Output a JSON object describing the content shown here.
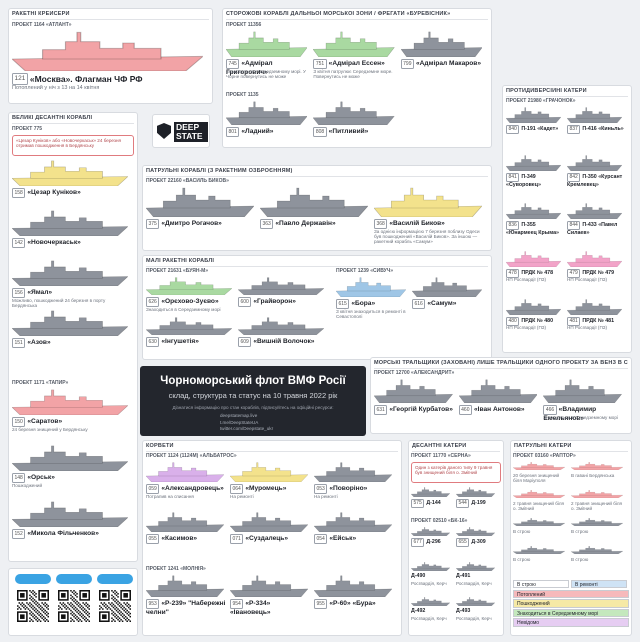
{
  "logo": "DEEP STATE",
  "title": "Чорноморський флот ВМФ Росії",
  "subtitle": "склад, структура та статус на 10 травня 2022 рік",
  "info": "Дізнатися інформацію про стан кораблів, підписуйтесь на офіційні ресурси:",
  "links": [
    "deepstatemap.live",
    "t.me/DeepStateUA",
    "twitter.com/Deepstate_ukr"
  ],
  "sections": [
    {
      "title": "РАКЕТНІ КРЕЙСЕРИ",
      "projects": [
        {
          "name": "ПРОЕКТ 1164 «АТЛАНТ»",
          "ships": [
            {
              "number": "121",
              "name": "«Москва». Флагман ЧФ РФ",
              "note": "Потоплений у ніч з 13 на 14 квітня",
              "color": "#f2a3a6"
            }
          ]
        }
      ]
    },
    {
      "title": "СТОРОЖОВІ КОРАБЛІ ДАЛЬНЬОЇ МОРСЬКОЇ ЗОНИ / ФРЕГАТИ «БУРЕВІСНИК»",
      "projects": [
        {
          "name": "ПРОЕКТ 11356",
          "ships": [
            {
              "number": "745",
              "name": "«Адмірал Григорович»",
              "note": "Знаходиться у Середземному морі. У Чорне повернутись не може",
              "color": "#a9d9a1"
            },
            {
              "number": "751",
              "name": "«Адмірал Ессен»",
              "note": "З квітня патрулює Середземне море. Повернутись не може",
              "color": "#a9d9a1"
            },
            {
              "number": "799",
              "name": "«Адмірал Макаров»",
              "color": "#8e939c"
            }
          ]
        },
        {
          "name": "ПРОЕКТ 1135",
          "ships": [
            {
              "number": "801",
              "name": "«Ладний»",
              "color": "#8e939c"
            },
            {
              "number": "808",
              "name": "«Питливий»",
              "color": "#8e939c"
            }
          ]
        }
      ]
    },
    {
      "title": "ВЕЛИКІ ДЕСАНТНІ КОРАБЛІ",
      "projects": [
        {
          "name": "ПРОЕКТ 775",
          "note": "«Цезар Куніков» або «Новочеркаськ» 24 березня отримав пошкодження в Бердянську",
          "ships": [
            {
              "number": "158",
              "name": "«Цезар Куніков»",
              "color": "#f3e28c"
            },
            {
              "number": "142",
              "name": "«Новочеркаськ»",
              "color": "#8e939c"
            },
            {
              "number": "156",
              "name": "«Ямал»",
              "note": "Можливо, пошкоджений 24 березня в порту Бердянська",
              "color": "#8e939c"
            },
            {
              "number": "151",
              "name": "«Азов»",
              "color": "#8e939c"
            }
          ]
        },
        {
          "name": "ПРОЕКТ 1171 «ТАПИР»",
          "ships": [
            {
              "number": "150",
              "name": "«Саратов»",
              "note": "24 березня знищений у Бердянську",
              "color": "#f2a3a6"
            },
            {
              "number": "148",
              "name": "«Орськ»",
              "note": "Пошкоджений",
              "color": "#8e939c"
            },
            {
              "number": "152",
              "name": "«Микола Фільченков»",
              "color": "#8e939c"
            }
          ]
        }
      ]
    },
    {
      "title": "ПАТРУЛЬНІ КОРАБЛІ (З РАКЕТНИМ ОЗБРОЄННЯМ)",
      "projects": [
        {
          "name": "ПРОЕКТ 22160 «ВАСИЛЬ БИКОВ»",
          "ships": [
            {
              "number": "375",
              "name": "«Дмитро Рогачов»",
              "color": "#8e939c"
            },
            {
              "number": "363",
              "name": "«Павло Державін»",
              "color": "#8e939c"
            },
            {
              "number": "368",
              "name": "«Василій Биков»",
              "note": "За однією інформацією 7 березня поблизу Одеси був пошкоджений «Василій Биков». За іншою — ракетний корабль «Самум»",
              "color": "#f3e28c"
            }
          ]
        }
      ]
    },
    {
      "title": "МАЛІ РАКЕТНІ КОРАБЛІ",
      "projects": [
        {
          "name": "ПРОЕКТ 21631 «БУЯН-М»",
          "ships": [
            {
              "number": "626",
              "name": "«Орєхово-Зуєво»",
              "note": "Знаходиться в Середземному морі",
              "color": "#a9d9a1"
            },
            {
              "number": "600",
              "name": "«Грайворон»",
              "color": "#8e939c"
            },
            {
              "number": "630",
              "name": "«Інгушетія»",
              "color": "#8e939c"
            },
            {
              "number": "609",
              "name": "«Вишній Волочок»",
              "color": "#8e939c"
            }
          ]
        },
        {
          "name": "ПРОЕКТ 1239 «СИВУЧ»",
          "ships": [
            {
              "number": "615",
              "name": "«Бора»",
              "note": "З квітня знаходиться в ремонті в Севастополі",
              "color": "#9fc6e6"
            },
            {
              "number": "616",
              "name": "«Самум»",
              "color": "#8e939c"
            }
          ]
        }
      ]
    },
    {
      "title": "МОРСЬКІ ТРАЛЬЩИКИ (ЗАХОВАНІ) ЛИШЕ ТРАЛЬЩИКИ ОДНОГО ПРОЕКТУ ЗА ВЕНЗ В СЕРВІСНЕ СПРЯМУВАННЯ",
      "projects": [
        {
          "name": "ПРОЕКТ 12700 «АЛЕКСАНДРИТ»",
          "ships": [
            {
              "number": "631",
              "name": "«Георгій Курбатов»",
              "color": "#8e939c"
            },
            {
              "number": "460",
              "name": "«Іван Антонов»",
              "color": "#8e939c"
            },
            {
              "number": "466",
              "name": "«Владимир Емельянов»",
              "note": "Знаходиться в Середземному морі",
              "color": "#8e939c"
            }
          ]
        }
      ]
    },
    {
      "title": "ПРОТИДИВЕРСІЙНІ КАТЕРИ",
      "projects": [
        {
          "name": "ПРОЕКТ 21980 «ГРАЧОНОК»",
          "ships": [
            {
              "number": "840",
              "name": "П-191 «Кадет»",
              "color": "#8e939c"
            },
            {
              "number": "837",
              "name": "П-416 «Киньль»",
              "color": "#8e939c"
            },
            {
              "number": "841",
              "name": "П-349 «Суворовец»",
              "color": "#8e939c"
            },
            {
              "number": "842",
              "name": "П-350 «Курсант Кремлевец»",
              "color": "#8e939c"
            },
            {
              "number": "836",
              "name": "П-355 «Юнармеец Крыма»",
              "color": "#8e939c"
            },
            {
              "number": "844",
              "name": "П-433 «Павел Силаев»",
              "color": "#8e939c"
            },
            {
              "number": "478",
              "name": "ПРДК № 478",
              "note": "НП Росгвардії (ПЗ)",
              "color": "#f2a3c8"
            },
            {
              "number": "479",
              "name": "ПРДК № 479",
              "note": "НП Росгвардії (ПЗ)",
              "color": "#f2a3c8"
            },
            {
              "number": "480",
              "name": "ПРДК № 480",
              "note": "НП Росгвардії (ПЗ)",
              "color": "#8e939c"
            },
            {
              "number": "481",
              "name": "ПРДК № 481",
              "note": "НП Росгвардії (ПЗ)",
              "color": "#8e939c"
            }
          ]
        }
      ]
    },
    {
      "title": "КОРВЕТИ",
      "projects": [
        {
          "name": "ПРОЕКТ 1124 (1124М) «АЛЬБАТРОС»",
          "ships": [
            {
              "number": "059",
              "name": "«Александровець»",
              "note": "Потрапив на списання",
              "color": "#d9b0ea"
            },
            {
              "number": "064",
              "name": "«Муромець»",
              "note": "На ремонті",
              "color": "#f3e28c"
            },
            {
              "number": "053",
              "name": "«Поворіно»",
              "note": "На ремонті",
              "color": "#8e939c"
            },
            {
              "number": "055",
              "name": "«Касимов»",
              "color": "#8e939c"
            },
            {
              "number": "071",
              "name": "«Суздалець»",
              "color": "#8e939c"
            },
            {
              "number": "054",
              "name": "«Ейськ»",
              "color": "#8e939c"
            }
          ]
        },
        {
          "name": "ПРОЕКТ 1241 «МОЛНІЯ»",
          "ships": [
            {
              "number": "953",
              "name": "«Р-239» \"Набережні челни\"",
              "color": "#8e939c"
            },
            {
              "number": "954",
              "name": "«Р-334» «Івановець»",
              "color": "#8e939c"
            },
            {
              "number": "955",
              "name": "«Р-60» «Бура»",
              "color": "#8e939c"
            }
          ]
        }
      ]
    },
    {
      "title": "ДЕСАНТНІ КАТЕРИ",
      "projects": [
        {
          "name": "ПРОЕКТ 11770 «СЕРНА»",
          "note": "Один з катерів даного типу 9 травня був знищений біля о. Зміїний",
          "ships": [
            {
              "number": "575",
              "name": "Д-144",
              "color": "#8e939c"
            },
            {
              "number": "544",
              "name": "Д-199",
              "color": "#8e939c"
            }
          ]
        },
        {
          "name": "ПРОЕКТ 02510 «БК-16»",
          "ships": [
            {
              "number": "677",
              "name": "Д-296",
              "color": "#8e939c"
            },
            {
              "number": "655",
              "name": "Д-309",
              "color": "#8e939c"
            },
            {
              "name": "Д-490",
              "note": "Росгвардія, Керч",
              "color": "#8e939c"
            },
            {
              "name": "Д-491",
              "note": "Росгвардія, Керч",
              "color": "#8e939c"
            },
            {
              "name": "Д-492",
              "note": "Росгвардія, Керч",
              "color": "#8e939c"
            },
            {
              "name": "Д-493",
              "note": "Росгвардія, Керч",
              "color": "#8e939c"
            }
          ]
        }
      ]
    },
    {
      "title": "ПАТРУЛЬНІ КАТЕРИ",
      "projects": [
        {
          "name": "ПРОЕКТ 03160 «РАПТОР»",
          "ships": [
            {
              "note": "20 березня знищений біля Маріуполя",
              "color": "#f2a3a6"
            },
            {
              "note": "В гавані Бердянська",
              "color": "#f2a3a6"
            },
            {
              "note": "2 травня знищений біля о. Зміїний",
              "color": "#f2a3a6"
            },
            {
              "note": "2 травня знищений біля о. Зміїний",
              "color": "#f2a3a6"
            },
            {
              "note": "В строю",
              "color": "#8e939c"
            },
            {
              "note": "В строю",
              "color": "#8e939c"
            },
            {
              "note": "В строю",
              "color": "#8e939c"
            },
            {
              "note": "В строю",
              "color": "#8e939c"
            }
          ]
        }
      ]
    }
  ],
  "legend": [
    {
      "label": "В строю",
      "color": "#ffffff"
    },
    {
      "label": "В ремонті",
      "color": "#cfe3f5"
    },
    {
      "label": "Потоплений",
      "color": "#f6b9bb"
    },
    {
      "label": "Пошкоджений",
      "color": "#f6e9a6"
    },
    {
      "label": "Знаходиться в Середземному морі",
      "color": "#c4e8bd"
    },
    {
      "label": "Невідомо",
      "color": "#e6cdf2"
    }
  ]
}
